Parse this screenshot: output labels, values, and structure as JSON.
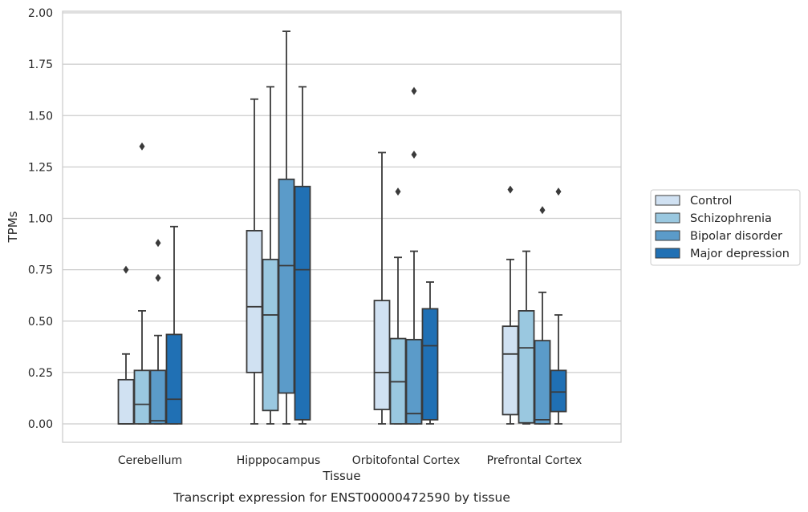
{
  "chart_data": {
    "type": "boxplot",
    "caption": "Transcript expression for ENST00000472590 by tissue",
    "xlabel": "Tissue",
    "ylabel": "TPMs",
    "ylim": [
      -0.09,
      2.0
    ],
    "yticks": [
      "0.00",
      "0.25",
      "0.50",
      "0.75",
      "1.00",
      "1.25",
      "1.50",
      "1.75",
      "2.00"
    ],
    "grid": "horizontal",
    "legend_position": "right",
    "categories": [
      "Cerebellum",
      "Hipppocampus",
      "Orbitofontal Cortex",
      "Prefrontal Cortex"
    ],
    "series": [
      {
        "name": "Control",
        "color": "#d0e1f2",
        "boxes": [
          {
            "whislo": 0.0,
            "q1": 0.0,
            "med": 0.0,
            "q3": 0.215,
            "whishi": 0.34,
            "fliers": [
              0.75
            ]
          },
          {
            "whislo": 0.0,
            "q1": 0.25,
            "med": 0.57,
            "q3": 0.94,
            "whishi": 1.58,
            "fliers": []
          },
          {
            "whislo": 0.0,
            "q1": 0.07,
            "med": 0.25,
            "q3": 0.6,
            "whishi": 1.32,
            "fliers": []
          },
          {
            "whislo": 0.0,
            "q1": 0.045,
            "med": 0.34,
            "q3": 0.475,
            "whishi": 0.8,
            "fliers": [
              1.14
            ]
          }
        ]
      },
      {
        "name": "Schizophrenia",
        "color": "#9ac8e0",
        "boxes": [
          {
            "whislo": 0.0,
            "q1": 0.0,
            "med": 0.095,
            "q3": 0.26,
            "whishi": 0.55,
            "fliers": [
              1.35
            ]
          },
          {
            "whislo": 0.0,
            "q1": 0.065,
            "med": 0.53,
            "q3": 0.8,
            "whishi": 1.64,
            "fliers": []
          },
          {
            "whislo": 0.0,
            "q1": 0.0,
            "med": 0.205,
            "q3": 0.415,
            "whishi": 0.81,
            "fliers": [
              1.13
            ]
          },
          {
            "whislo": 0.0,
            "q1": 0.005,
            "med": 0.37,
            "q3": 0.55,
            "whishi": 0.84,
            "fliers": []
          }
        ]
      },
      {
        "name": "Bipolar disorder",
        "color": "#5b9bc9",
        "boxes": [
          {
            "whislo": 0.0,
            "q1": 0.0,
            "med": 0.015,
            "q3": 0.26,
            "whishi": 0.43,
            "fliers": [
              0.71,
              0.88
            ]
          },
          {
            "whislo": 0.0,
            "q1": 0.15,
            "med": 0.77,
            "q3": 1.19,
            "whishi": 1.91,
            "fliers": []
          },
          {
            "whislo": 0.0,
            "q1": 0.0,
            "med": 0.05,
            "q3": 0.41,
            "whishi": 0.84,
            "fliers": [
              1.31,
              1.62
            ]
          },
          {
            "whislo": 0.0,
            "q1": 0.0,
            "med": 0.02,
            "q3": 0.405,
            "whishi": 0.64,
            "fliers": [
              1.04
            ]
          }
        ]
      },
      {
        "name": "Major depression",
        "color": "#2070b4",
        "boxes": [
          {
            "whislo": 0.0,
            "q1": 0.0,
            "med": 0.12,
            "q3": 0.435,
            "whishi": 0.96,
            "fliers": []
          },
          {
            "whislo": 0.0,
            "q1": 0.02,
            "med": 0.75,
            "q3": 1.155,
            "whishi": 1.64,
            "fliers": []
          },
          {
            "whislo": 0.0,
            "q1": 0.02,
            "med": 0.38,
            "q3": 0.56,
            "whishi": 0.69,
            "fliers": []
          },
          {
            "whislo": 0.0,
            "q1": 0.06,
            "med": 0.155,
            "q3": 0.26,
            "whishi": 0.53,
            "fliers": [
              1.13
            ]
          }
        ]
      }
    ]
  }
}
